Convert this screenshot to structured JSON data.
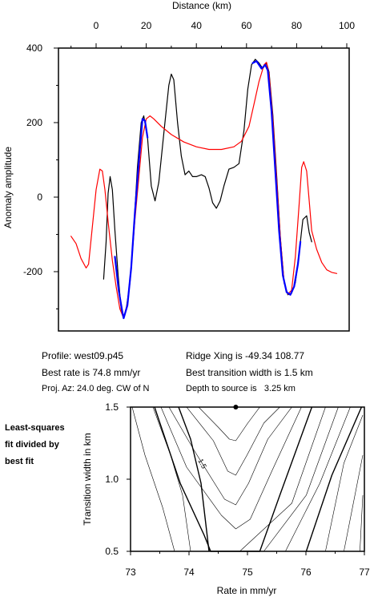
{
  "chart_data": [
    {
      "type": "line",
      "xlabel": "Distance (km)",
      "ylabel": "Anomaly amplitude",
      "xlim": [
        -10,
        100
      ],
      "ylim": [
        -360,
        400
      ],
      "xticks": [
        0,
        20,
        40,
        60,
        80,
        100
      ],
      "yticks": [
        -200,
        0,
        200,
        400
      ],
      "x_axis_position": "top",
      "grid": false,
      "series": [
        {
          "color": "#000000",
          "points": [
            [
              3,
              -220
            ],
            [
              4,
              -120
            ],
            [
              4.8,
              10
            ],
            [
              5.6,
              55
            ],
            [
              6.5,
              20
            ],
            [
              7.5,
              -90
            ],
            [
              8.8,
              -210
            ],
            [
              10,
              -300
            ],
            [
              11,
              -325
            ],
            [
              12,
              -300
            ],
            [
              13.5,
              -230
            ],
            [
              15,
              -90
            ],
            [
              16.5,
              80
            ],
            [
              18,
              200
            ],
            [
              19,
              218
            ],
            [
              20.5,
              160
            ],
            [
              22,
              30
            ],
            [
              23.5,
              -10
            ],
            [
              25,
              40
            ],
            [
              27,
              170
            ],
            [
              29,
              300
            ],
            [
              30,
              330
            ],
            [
              31,
              315
            ],
            [
              32.5,
              200
            ],
            [
              34,
              110
            ],
            [
              35.5,
              60
            ],
            [
              37,
              70
            ],
            [
              38.5,
              55
            ],
            [
              40,
              55
            ],
            [
              42,
              60
            ],
            [
              43.5,
              55
            ],
            [
              45,
              25
            ],
            [
              46.5,
              -15
            ],
            [
              48,
              -30
            ],
            [
              49.5,
              -10
            ],
            [
              51,
              30
            ],
            [
              53,
              75
            ],
            [
              55,
              80
            ],
            [
              57,
              90
            ],
            [
              59,
              180
            ],
            [
              60.5,
              290
            ],
            [
              62,
              355
            ],
            [
              63.5,
              370
            ],
            [
              65,
              360
            ],
            [
              66.5,
              345
            ],
            [
              68,
              360
            ],
            [
              69,
              335
            ],
            [
              70.5,
              220
            ],
            [
              72,
              60
            ],
            [
              73.5,
              -110
            ],
            [
              75,
              -230
            ],
            [
              76.5,
              -262
            ],
            [
              78,
              -258
            ],
            [
              79.5,
              -230
            ],
            [
              81,
              -150
            ],
            [
              82.5,
              -60
            ],
            [
              84,
              -50
            ],
            [
              85,
              -95
            ],
            [
              86,
              -120
            ]
          ]
        },
        {
          "color": "#ff0000",
          "points": [
            [
              -10,
              -105
            ],
            [
              -8,
              -125
            ],
            [
              -6,
              -165
            ],
            [
              -4,
              -190
            ],
            [
              -3,
              -180
            ],
            [
              -1.5,
              -80
            ],
            [
              0,
              20
            ],
            [
              1.5,
              75
            ],
            [
              2.5,
              70
            ],
            [
              3.5,
              20
            ],
            [
              5,
              -80
            ],
            [
              6.5,
              -170
            ],
            [
              8,
              -240
            ],
            [
              9.5,
              -300
            ],
            [
              11,
              -325
            ],
            [
              12.5,
              -285
            ],
            [
              14,
              -190
            ],
            [
              15.5,
              -60
            ],
            [
              17,
              50
            ],
            [
              18.5,
              160
            ],
            [
              20,
              210
            ],
            [
              21.5,
              218
            ],
            [
              23,
              210
            ],
            [
              26,
              190
            ],
            [
              30,
              168
            ],
            [
              35,
              148
            ],
            [
              40,
              135
            ],
            [
              45,
              128
            ],
            [
              50,
              128
            ],
            [
              55,
              135
            ],
            [
              58,
              150
            ],
            [
              61,
              190
            ],
            [
              63,
              250
            ],
            [
              65,
              310
            ],
            [
              67,
              355
            ],
            [
              68,
              362
            ],
            [
              69,
              330
            ],
            [
              70.5,
              210
            ],
            [
              72,
              50
            ],
            [
              73.5,
              -110
            ],
            [
              75,
              -230
            ],
            [
              76.5,
              -260
            ],
            [
              78,
              -250
            ],
            [
              79.5,
              -160
            ],
            [
              81,
              -20
            ],
            [
              82,
              80
            ],
            [
              82.8,
              95
            ],
            [
              84,
              70
            ],
            [
              85,
              -10
            ],
            [
              86,
              -90
            ],
            [
              88,
              -140
            ],
            [
              90,
              -175
            ],
            [
              92,
              -195
            ],
            [
              94,
              -202
            ],
            [
              96,
              -205
            ]
          ]
        },
        {
          "color": "#0000ff",
          "points": [
            [
              7.5,
              -160
            ],
            [
              9,
              -250
            ],
            [
              10.5,
              -310
            ],
            [
              11,
              -325
            ],
            [
              12.5,
              -290
            ],
            [
              14,
              -190
            ],
            [
              15.5,
              -40
            ],
            [
              17,
              90
            ],
            [
              18.5,
              210
            ],
            [
              19.5,
              205
            ],
            [
              20.5,
              160
            ]
          ]
        },
        {
          "color": "#0000ff",
          "points": [
            [
              62.5,
              360
            ],
            [
              64,
              365
            ],
            [
              66,
              345
            ],
            [
              67.5,
              355
            ],
            [
              68.5,
              340
            ],
            [
              70,
              230
            ],
            [
              71.5,
              70
            ],
            [
              73,
              -90
            ],
            [
              74.5,
              -210
            ],
            [
              76,
              -255
            ],
            [
              77.5,
              -262
            ],
            [
              79,
              -240
            ],
            [
              80.5,
              -180
            ],
            [
              81.5,
              -120
            ]
          ]
        }
      ]
    },
    {
      "type": "contour",
      "xlabel": "Rate in mm/yr",
      "ylabel": "Transition width in km",
      "xlim": [
        73,
        77
      ],
      "ylim": [
        0.5,
        1.5
      ],
      "xticks": [
        73,
        74,
        75,
        76,
        77
      ],
      "yticks": [
        0.5,
        1.0,
        1.5
      ],
      "best_fit_point": [
        74.8,
        1.5
      ],
      "contour_label": "1.5",
      "grid": false
    }
  ],
  "info": {
    "profile": "Profile: west09.p45",
    "rate": "Best rate is 74.8 mm/yr",
    "azimuth": "Proj. Az: 24.0 deg. CW of N",
    "ridge": "Ridge Xing is -49.34 108.77",
    "width": "Best transition width is 1.5 km",
    "depth": "Depth to source is   3.25 km"
  },
  "side_note": [
    "Least-squares",
    "fit divided by",
    "best fit"
  ]
}
